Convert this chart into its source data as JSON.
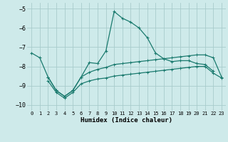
{
  "xlabel": "Humidex (Indice chaleur)",
  "xlim": [
    -0.5,
    23.5
  ],
  "ylim": [
    -10.3,
    -4.7
  ],
  "yticks": [
    -10,
    -9,
    -8,
    -7,
    -6,
    -5
  ],
  "xticks": [
    0,
    1,
    2,
    3,
    4,
    5,
    6,
    7,
    8,
    9,
    10,
    11,
    12,
    13,
    14,
    15,
    16,
    17,
    18,
    19,
    20,
    21,
    22,
    23
  ],
  "bg_color": "#ceeaea",
  "grid_color": "#a8cccc",
  "line_color": "#1a7a6e",
  "line1_x": [
    0,
    1,
    2,
    3,
    4,
    5,
    6,
    7,
    8,
    9,
    10,
    11,
    12,
    13,
    14,
    15,
    16,
    17,
    18,
    19,
    20,
    21,
    22
  ],
  "line1_y": [
    -7.3,
    -7.55,
    -8.55,
    -9.25,
    -9.55,
    -9.25,
    -8.55,
    -7.8,
    -7.85,
    -7.2,
    -5.15,
    -5.5,
    -5.7,
    -6.0,
    -6.5,
    -7.3,
    -7.6,
    -7.75,
    -7.7,
    -7.7,
    -7.85,
    -7.9,
    -8.25
  ],
  "line2_x": [
    2,
    3,
    4,
    5,
    6,
    7,
    8,
    9,
    10,
    11,
    12,
    13,
    14,
    15,
    16,
    17,
    18,
    19,
    20,
    21,
    22,
    23
  ],
  "line2_y": [
    -8.55,
    -9.25,
    -9.55,
    -9.25,
    -8.55,
    -8.3,
    -8.15,
    -8.05,
    -7.9,
    -7.85,
    -7.8,
    -7.75,
    -7.7,
    -7.65,
    -7.6,
    -7.55,
    -7.5,
    -7.45,
    -7.4,
    -7.4,
    -7.55,
    -8.55
  ],
  "line3_x": [
    2,
    3,
    4,
    5,
    6,
    7,
    8,
    9,
    10,
    11,
    12,
    13,
    14,
    15,
    16,
    17,
    18,
    19,
    20,
    21,
    22,
    23
  ],
  "line3_y": [
    -8.75,
    -9.35,
    -9.65,
    -9.35,
    -8.9,
    -8.75,
    -8.65,
    -8.6,
    -8.5,
    -8.45,
    -8.4,
    -8.35,
    -8.3,
    -8.25,
    -8.2,
    -8.15,
    -8.1,
    -8.05,
    -8.0,
    -8.0,
    -8.35,
    -8.6
  ]
}
